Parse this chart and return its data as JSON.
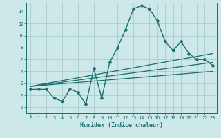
{
  "xlabel": "Humidex (Indice chaleur)",
  "bg_color": "#cce8e8",
  "grid_color": "#aacccc",
  "line_color": "#1a6e6e",
  "xlim": [
    -0.5,
    23.5
  ],
  "ylim": [
    -3.0,
    15.5
  ],
  "xtick_labels": [
    "0",
    "1",
    "2",
    "3",
    "4",
    "5",
    "6",
    "7",
    "8",
    "9",
    "10",
    "11",
    "12",
    "13",
    "14",
    "15",
    "16",
    "17",
    "18",
    "19",
    "20",
    "21",
    "22",
    "23"
  ],
  "ytick_values": [
    -2,
    0,
    2,
    4,
    6,
    8,
    10,
    12,
    14
  ],
  "series": [
    {
      "x": [
        0,
        1,
        2,
        3,
        4,
        5,
        6,
        7,
        8,
        9,
        10,
        11,
        12,
        13,
        14,
        15,
        16,
        17,
        18,
        19,
        20,
        21,
        22,
        23
      ],
      "y": [
        1,
        1,
        1,
        -0.5,
        -1,
        1,
        0.5,
        -1.5,
        4.5,
        -0.5,
        5.5,
        8,
        11,
        14.5,
        15,
        14.5,
        12.5,
        9,
        7.5,
        9,
        7,
        6,
        6,
        5
      ],
      "marker": "D",
      "markersize": 2.5,
      "linewidth": 1.0
    },
    {
      "x": [
        0,
        23
      ],
      "y": [
        1.5,
        7.0
      ],
      "marker": null,
      "markersize": 0,
      "linewidth": 0.9
    },
    {
      "x": [
        0,
        23
      ],
      "y": [
        1.5,
        5.5
      ],
      "marker": null,
      "markersize": 0,
      "linewidth": 0.9
    },
    {
      "x": [
        0,
        23
      ],
      "y": [
        1.5,
        4.0
      ],
      "marker": null,
      "markersize": 0,
      "linewidth": 0.9
    }
  ]
}
